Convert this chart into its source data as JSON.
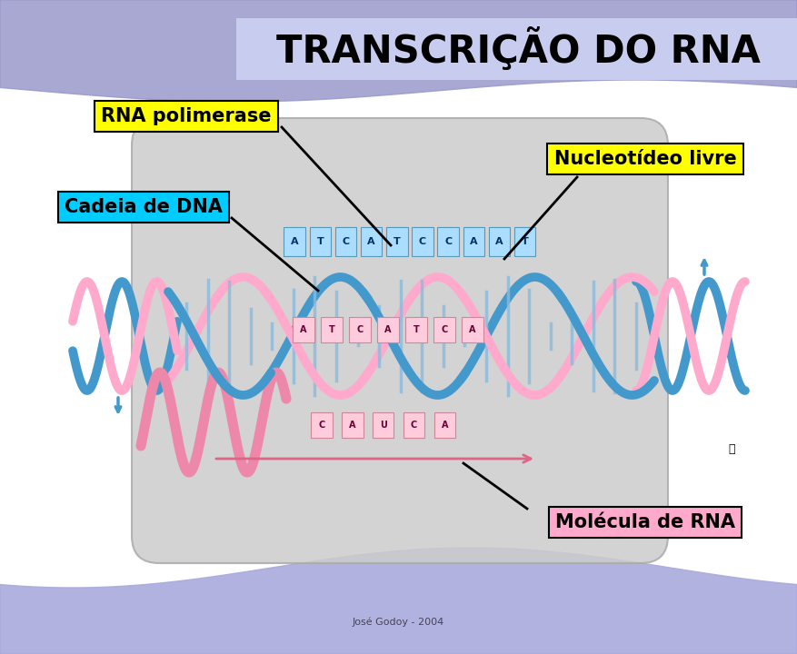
{
  "title": "TRANSCRIÇÃO DO RNA",
  "title_fontsize": 30,
  "title_fontweight": "bold",
  "title_color": "#000000",
  "title_bg": "#c8ccee",
  "bg_color": "#ffffff",
  "top_band_color": "#9999cc",
  "bottom_band_color": "#aaaadd",
  "label_rna_polimerase": "RNA polimerase",
  "label_rna_pol_bg": "#ffff00",
  "label_cadeia": "Cadeia de DNA",
  "label_cadeia_bg": "#00ccff",
  "label_nucleotideo": "Nucleotídeo livre",
  "label_nucleotideo_bg": "#ffff00",
  "label_molecula": "Molécula de RNA",
  "label_molecula_bg": "#ffaacc",
  "label_fontsize": 15,
  "label_fontweight": "bold",
  "annotation_color": "#000000",
  "credit_text": "José Godoy - 2004",
  "credit_fontsize": 8,
  "cell_color": "#cccccc",
  "cell_edge_color": "#aaaaaa",
  "dna_blue": "#4499cc",
  "dna_pink": "#ffaacc",
  "rna_color": "#dd6688",
  "rung_color": "#88bbdd"
}
